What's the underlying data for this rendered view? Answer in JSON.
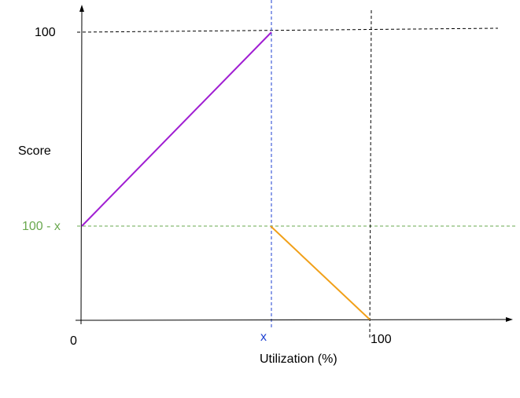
{
  "labels": {
    "y_max": "100",
    "y_axis_title": "Score",
    "y_mid": "100 - x",
    "x_origin": "0",
    "x_mid": "x",
    "x_max": "100",
    "x_axis_title": "Utilization (%)"
  },
  "colors": {
    "axis": "#000000",
    "guide_black": "#000000",
    "guide_green": "#6aa84f",
    "guide_blue": "#1c3fd1",
    "rising_segment": "#a01ed2",
    "falling_segment": "#f1a019",
    "label_default": "#000000",
    "label_y_mid": "#6aa84f",
    "label_x_mid": "#1c3fd1"
  }
}
